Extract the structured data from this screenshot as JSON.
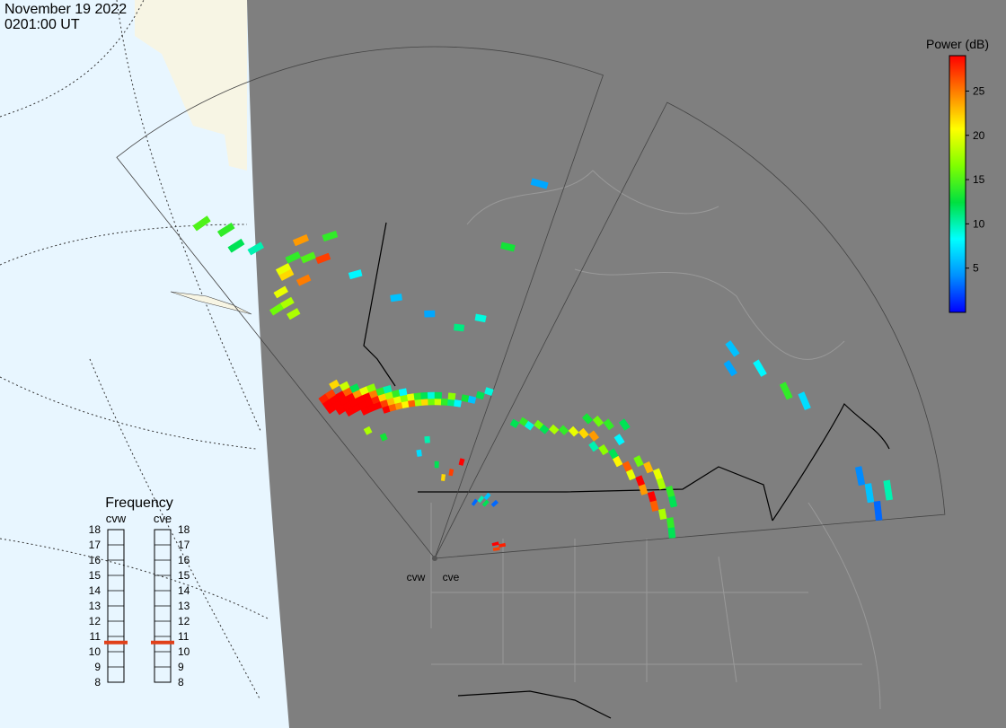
{
  "header": {
    "date": "November 19 2022",
    "time": "0201:00 UT"
  },
  "colorbar": {
    "title": "Power (dB)",
    "lim": [
      0,
      29
    ],
    "ticks": [
      5,
      10,
      15,
      20,
      25
    ],
    "colors": [
      "#0000ff",
      "#0090ff",
      "#00ffff",
      "#00e040",
      "#80ff00",
      "#ffff00",
      "#ff8000",
      "#ff0000"
    ]
  },
  "frequency": {
    "title": "Frequency",
    "lim": [
      8,
      18
    ],
    "ticks": [
      8,
      9,
      10,
      11,
      12,
      13,
      14,
      15,
      16,
      17,
      18
    ],
    "radars": [
      {
        "name": "cvw",
        "value": 10.6
      },
      {
        "name": "cve",
        "value": 10.6
      }
    ]
  },
  "radars": [
    {
      "name": "cvw",
      "cells": [
        [
          1,
          22,
          29
        ],
        [
          1,
          23,
          29
        ],
        [
          1,
          24,
          28
        ],
        [
          2,
          21,
          29
        ],
        [
          2,
          22,
          29
        ],
        [
          2,
          23,
          29
        ],
        [
          2,
          24,
          27
        ],
        [
          3,
          20,
          29
        ],
        [
          3,
          21,
          29
        ],
        [
          3,
          22,
          29
        ],
        [
          3,
          23,
          29
        ],
        [
          3,
          25,
          22
        ],
        [
          4,
          20,
          29
        ],
        [
          4,
          21,
          29
        ],
        [
          4,
          22,
          29
        ],
        [
          4,
          23,
          26
        ],
        [
          4,
          24,
          19
        ],
        [
          5,
          19,
          29
        ],
        [
          5,
          20,
          29
        ],
        [
          5,
          21,
          29
        ],
        [
          5,
          22,
          24
        ],
        [
          5,
          23,
          12
        ],
        [
          6,
          19,
          29
        ],
        [
          6,
          20,
          29
        ],
        [
          6,
          21,
          29
        ],
        [
          6,
          22,
          20
        ],
        [
          7,
          19,
          29
        ],
        [
          7,
          20,
          28
        ],
        [
          7,
          21,
          25
        ],
        [
          7,
          22,
          17
        ],
        [
          8,
          18,
          29
        ],
        [
          8,
          19,
          27
        ],
        [
          8,
          20,
          22
        ],
        [
          8,
          21,
          14
        ],
        [
          9,
          18,
          26
        ],
        [
          9,
          19,
          23
        ],
        [
          9,
          20,
          18
        ],
        [
          9,
          21,
          10
        ],
        [
          10,
          18,
          24
        ],
        [
          10,
          19,
          20
        ],
        [
          10,
          20,
          14
        ],
        [
          11,
          18,
          21
        ],
        [
          11,
          19,
          17
        ],
        [
          11,
          20,
          8
        ],
        [
          12,
          18,
          26
        ],
        [
          12,
          19,
          20
        ],
        [
          13,
          18,
          18
        ],
        [
          13,
          19,
          14
        ],
        [
          14,
          18,
          22
        ],
        [
          14,
          19,
          12
        ],
        [
          15,
          18,
          16
        ],
        [
          15,
          19,
          9
        ],
        [
          16,
          18,
          19
        ],
        [
          16,
          19,
          12
        ],
        [
          17,
          18,
          14
        ],
        [
          18,
          18,
          11
        ],
        [
          18,
          19,
          17
        ],
        [
          19,
          18,
          8
        ],
        [
          20,
          19,
          13
        ],
        [
          21,
          19,
          6
        ],
        [
          22,
          20,
          12
        ],
        [
          23,
          21,
          9
        ],
        [
          2,
          55,
          14
        ],
        [
          2,
          52,
          12
        ],
        [
          3,
          50,
          10
        ],
        [
          1,
          58,
          15
        ],
        [
          4,
          44,
          22
        ],
        [
          4,
          45,
          20
        ],
        [
          5,
          46,
          14
        ],
        [
          5,
          42,
          25
        ],
        [
          3,
          42,
          20
        ],
        [
          3,
          40,
          18
        ],
        [
          6,
          45,
          15
        ],
        [
          6,
          48,
          24
        ],
        [
          7,
          44,
          27
        ],
        [
          2,
          40,
          16
        ],
        [
          3,
          38,
          18
        ],
        [
          8,
          47,
          14
        ],
        [
          9,
          40,
          8
        ],
        [
          12,
          35,
          6
        ],
        [
          15,
          32,
          5
        ],
        [
          18,
          30,
          11
        ],
        [
          20,
          32,
          9
        ],
        [
          22,
          55,
          5
        ],
        [
          21,
          44,
          13
        ],
        [
          6,
          14,
          13
        ],
        [
          4,
          16,
          18
        ],
        [
          12,
          10,
          7
        ],
        [
          14,
          12,
          10
        ],
        [
          16,
          8,
          12
        ],
        [
          18,
          6,
          22
        ],
        [
          20,
          7,
          27
        ],
        [
          22,
          9,
          29
        ]
      ]
    },
    {
      "name": "cve",
      "cells": [
        [
          1,
          18,
          12
        ],
        [
          2,
          19,
          14
        ],
        [
          3,
          19,
          9
        ],
        [
          4,
          20,
          16
        ],
        [
          5,
          20,
          12
        ],
        [
          6,
          21,
          18
        ],
        [
          7,
          22,
          14
        ],
        [
          8,
          23,
          20
        ],
        [
          9,
          24,
          22
        ],
        [
          10,
          25,
          24
        ],
        [
          11,
          24,
          10
        ],
        [
          12,
          25,
          17
        ],
        [
          13,
          26,
          12
        ],
        [
          14,
          26,
          21
        ],
        [
          15,
          27,
          26
        ],
        [
          16,
          27,
          20
        ],
        [
          17,
          28,
          29
        ],
        [
          18,
          28,
          24
        ],
        [
          19,
          29,
          29
        ],
        [
          20,
          29,
          26
        ],
        [
          21,
          30,
          18
        ],
        [
          22,
          31,
          14
        ],
        [
          23,
          31,
          12
        ],
        [
          15,
          29,
          16
        ],
        [
          16,
          30,
          23
        ],
        [
          17,
          31,
          20
        ],
        [
          18,
          31,
          18
        ],
        [
          19,
          32,
          14
        ],
        [
          20,
          32,
          12
        ],
        [
          12,
          28,
          8
        ],
        [
          10,
          28,
          14
        ],
        [
          11,
          30,
          12
        ],
        [
          9,
          27,
          16
        ],
        [
          8,
          26,
          13
        ],
        [
          11,
          51,
          6
        ],
        [
          12,
          49,
          5
        ],
        [
          13,
          53,
          8
        ],
        [
          15,
          55,
          14
        ],
        [
          16,
          57,
          7
        ],
        [
          21,
          62,
          4
        ],
        [
          22,
          63,
          6
        ],
        [
          23,
          64,
          3
        ],
        [
          22,
          66,
          10
        ],
        [
          3,
          4,
          3
        ],
        [
          4,
          5,
          10
        ],
        [
          5,
          6,
          6
        ],
        [
          6,
          5,
          12
        ],
        [
          8,
          6,
          3
        ],
        [
          20,
          3,
          29
        ],
        [
          21,
          4,
          28
        ],
        [
          22,
          3,
          27
        ]
      ]
    }
  ]
}
